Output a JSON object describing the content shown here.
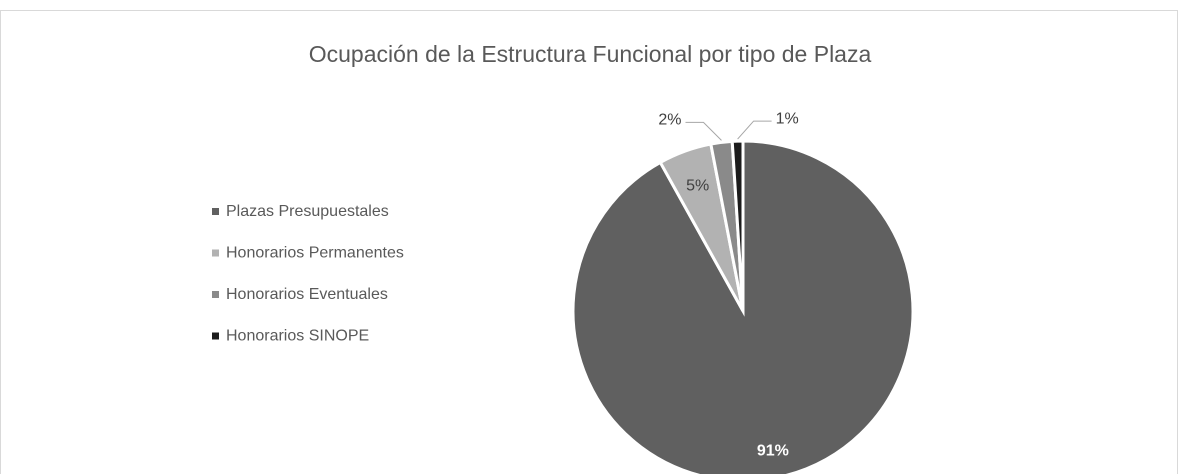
{
  "chart_data": {
    "type": "pie",
    "title": "Ocupación de la Estructura Funcional por tipo de Plaza",
    "categories": [
      "Plazas Presupuestales",
      "Honorarios Permanentes",
      "Honorarios Eventuales",
      "Honorarios SINOPE"
    ],
    "values": [
      91,
      5,
      2,
      1
    ],
    "value_labels": [
      "91%",
      "5%",
      "2%",
      "1%"
    ],
    "colors": [
      "#606060",
      "#b2b2b2",
      "#8a8a8a",
      "#1c1c1c"
    ],
    "legend": "left"
  }
}
